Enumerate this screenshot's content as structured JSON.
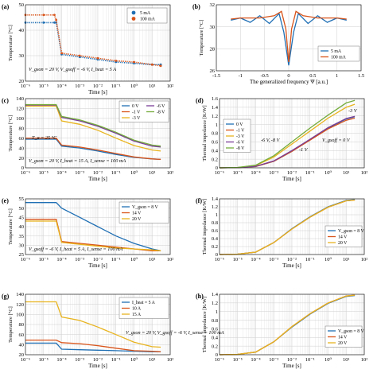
{
  "chart_data": [
    {
      "panel": "(a)",
      "type": "scatter",
      "xlabel": "Time [s]",
      "ylabel": "Temperature [°C]",
      "xscale": "log",
      "xlim": [
        1e-06,
        100
      ],
      "ylim": [
        20,
        50
      ],
      "xtick_labels": [
        "10⁻⁶",
        "10⁻⁵",
        "10⁻⁴",
        "10⁻³",
        "10⁻²",
        "10⁻¹",
        "10⁰",
        "10¹",
        "10²"
      ],
      "yticks": [
        20,
        30,
        40,
        50
      ],
      "grid": true,
      "legend": "top-right",
      "series": [
        {
          "name": "5 mA",
          "color": "#1f6fb4",
          "x": [
            1e-06,
            1e-05,
            4e-05,
            5e-05,
            0.0001,
            0.001,
            0.01,
            0.1,
            1,
            10,
            30
          ],
          "y": [
            43,
            43,
            43,
            43,
            30.5,
            29.5,
            28.5,
            27.5,
            27,
            26.5,
            26.5
          ]
        },
        {
          "name": "100 mA",
          "color": "#d9541a",
          "x": [
            1e-06,
            1e-05,
            4e-05,
            5e-05,
            0.0001,
            0.001,
            0.01,
            0.1,
            1,
            10,
            30
          ],
          "y": [
            46,
            46,
            46,
            44,
            31,
            30,
            29,
            28,
            27.5,
            26.5,
            26
          ]
        }
      ],
      "annotation": "V_gson = 20 V, V_gsoff = -6 V, I_heat = 5 A"
    },
    {
      "panel": "(b)",
      "type": "line",
      "xlabel": "The generalized frequency Ψ [a.u.]",
      "ylabel": "Temperature [°C]",
      "xlim": [
        -1.5,
        1.5
      ],
      "ylim": [
        26,
        32
      ],
      "xticks": [
        -1.5,
        -1,
        -0.5,
        0,
        0.5,
        1,
        1.5
      ],
      "yticks": [
        26,
        28,
        30,
        32
      ],
      "grid": true,
      "legend": "bottom-right",
      "series": [
        {
          "name": "5 mA",
          "color": "#1f6fb4",
          "x": [
            -1.2,
            -1.0,
            -0.8,
            -0.6,
            -0.4,
            -0.2,
            -0.1,
            0,
            0.1,
            0.2,
            0.4,
            0.6,
            0.8,
            1.0,
            1.2
          ],
          "y": [
            30.6,
            30.8,
            30.4,
            31.0,
            30.3,
            31.2,
            29.5,
            26.5,
            29.5,
            31.2,
            30.3,
            31.0,
            30.4,
            30.8,
            30.6
          ]
        },
        {
          "name": "100 mA",
          "color": "#d9541a",
          "x": [
            -1.2,
            -1.0,
            -0.6,
            -0.3,
            -0.15,
            -0.06,
            0,
            0.06,
            0.15,
            0.3,
            0.6,
            1.0,
            1.2
          ],
          "y": [
            30.7,
            30.8,
            30.8,
            31.0,
            31.4,
            29.8,
            26.8,
            29.8,
            31.4,
            31.0,
            30.8,
            30.8,
            30.7
          ]
        }
      ]
    },
    {
      "panel": "(c)",
      "type": "line",
      "xlabel": "Time [s]",
      "ylabel": "Temperature [°C]",
      "xscale": "log",
      "xlim": [
        1e-06,
        100
      ],
      "ylim": [
        0,
        140
      ],
      "xtick_labels": [
        "10⁻⁶",
        "10⁻⁵",
        "10⁻⁴",
        "10⁻³",
        "10⁻²",
        "10⁻¹",
        "10⁰",
        "10¹",
        "10²"
      ],
      "yticks": [
        0,
        20,
        40,
        60,
        80,
        100,
        120,
        140
      ],
      "grid": true,
      "legend": "top-right",
      "series": [
        {
          "name": "0 V",
          "color": "#1f6fb4",
          "x": [
            1e-06,
            4e-05,
            5e-05,
            0.0001,
            0.001,
            0.01,
            0.1,
            1,
            10,
            30
          ],
          "y": [
            58,
            58,
            58,
            44,
            40,
            34,
            27,
            21,
            18,
            17
          ]
        },
        {
          "name": "-1 V",
          "color": "#d9541a",
          "x": [
            1e-06,
            4e-05,
            5e-05,
            0.0001,
            0.001,
            0.01,
            0.1,
            1,
            10,
            30
          ],
          "y": [
            60,
            60,
            60,
            46,
            42,
            36,
            29,
            22,
            18,
            17
          ]
        },
        {
          "name": "-3 V",
          "color": "#e8b41f",
          "x": [
            1e-06,
            4e-05,
            5e-05,
            0.0001,
            0.001,
            0.01,
            0.1,
            1,
            10,
            30
          ],
          "y": [
            125,
            125,
            125,
            95,
            88,
            76,
            60,
            45,
            36,
            34
          ]
        },
        {
          "name": "-6 V",
          "color": "#7a3d96",
          "x": [
            1e-06,
            4e-05,
            5e-05,
            0.0001,
            0.001,
            0.01,
            0.1,
            1,
            10,
            30
          ],
          "y": [
            127,
            127,
            127,
            102,
            95,
            84,
            70,
            54,
            44,
            42
          ]
        },
        {
          "name": "-8 V",
          "color": "#74ac3c",
          "x": [
            1e-06,
            4e-05,
            5e-05,
            0.0001,
            0.001,
            0.01,
            0.1,
            1,
            10,
            30
          ],
          "y": [
            128,
            128,
            128,
            104,
            97,
            86,
            72,
            56,
            46,
            44
          ]
        }
      ],
      "annotations": [
        "T_a = 25 °C",
        "V_gson = 20 V, I_heat = 15 A, I_sense = 100 mA"
      ]
    },
    {
      "panel": "(d)",
      "type": "line",
      "xlabel": "Time [s]",
      "ylabel": "Thermal impedance [K/W]",
      "xscale": "log",
      "xlim": [
        1e-06,
        100
      ],
      "ylim": [
        0,
        1.6
      ],
      "xtick_labels": [
        "10⁻⁶",
        "10⁻⁵",
        "10⁻⁴",
        "10⁻³",
        "10⁻²",
        "10⁻¹",
        "10⁰",
        "10¹",
        "10²"
      ],
      "yticks": [
        0,
        0.2,
        0.4,
        0.6,
        0.8,
        1,
        1.2,
        1.4,
        1.6
      ],
      "grid": true,
      "legend": "top-left",
      "series": [
        {
          "name": "0 V",
          "color": "#1f6fb4",
          "x": [
            1e-06,
            1e-05,
            0.0001,
            0.001,
            0.01,
            0.1,
            1,
            10,
            30
          ],
          "y": [
            0,
            0.005,
            0.03,
            0.15,
            0.38,
            0.65,
            0.92,
            1.13,
            1.18
          ]
        },
        {
          "name": "-1 V",
          "color": "#d9541a",
          "x": [
            1e-06,
            1e-05,
            0.0001,
            0.001,
            0.01,
            0.1,
            1,
            10,
            30
          ],
          "y": [
            0,
            0.005,
            0.03,
            0.15,
            0.38,
            0.64,
            0.9,
            1.1,
            1.15
          ]
        },
        {
          "name": "-3 V",
          "color": "#e8b41f",
          "x": [
            1e-06,
            1e-05,
            0.0001,
            0.001,
            0.01,
            0.1,
            1,
            10,
            30
          ],
          "y": [
            0,
            0.008,
            0.05,
            0.25,
            0.55,
            0.85,
            1.15,
            1.4,
            1.47
          ]
        },
        {
          "name": "-6 V",
          "color": "#7a3d96",
          "x": [
            1e-06,
            1e-05,
            0.0001,
            0.001,
            0.01,
            0.1,
            1,
            10,
            30
          ],
          "y": [
            0,
            0.006,
            0.035,
            0.16,
            0.4,
            0.66,
            0.93,
            1.14,
            1.19
          ]
        },
        {
          "name": "-8 V",
          "color": "#74ac3c",
          "x": [
            1e-06,
            1e-05,
            0.0001,
            0.001,
            0.01,
            0.1,
            1,
            10,
            30
          ],
          "y": [
            0,
            0.009,
            0.06,
            0.28,
            0.6,
            0.92,
            1.22,
            1.5,
            1.56
          ]
        }
      ],
      "annotations": [
        "-6 V, -8 V",
        "-3 V",
        "-1 V",
        "V_gsoff = 0 V"
      ]
    },
    {
      "panel": "(e)",
      "type": "line",
      "xlabel": "Time [s]",
      "ylabel": "Temperature [°C]",
      "xscale": "log",
      "xlim": [
        1e-06,
        100
      ],
      "ylim": [
        25,
        55
      ],
      "xtick_labels": [
        "10⁻⁶",
        "10⁻⁵",
        "10⁻⁴",
        "10⁻³",
        "10⁻²",
        "10⁻¹",
        "10⁰",
        "10¹",
        "10²"
      ],
      "yticks": [
        25,
        30,
        35,
        40,
        45,
        50,
        55
      ],
      "grid": true,
      "legend": "top-right",
      "series": [
        {
          "name": "V_gson = 8 V",
          "color": "#1f6fb4",
          "x": [
            1e-06,
            4e-05,
            5e-05,
            0.0001,
            0.001,
            0.01,
            0.1,
            1,
            10,
            30
          ],
          "y": [
            53,
            53,
            53,
            50,
            45,
            40,
            35,
            31,
            28,
            27
          ]
        },
        {
          "name": "14 V",
          "color": "#d9541a",
          "x": [
            1e-06,
            4e-05,
            5e-05,
            0.0001,
            0.001,
            0.01,
            0.1,
            1,
            10,
            30
          ],
          "y": [
            44,
            44,
            44,
            32,
            31,
            30,
            29,
            28,
            27,
            27
          ]
        },
        {
          "name": "20 V",
          "color": "#e8b41f",
          "x": [
            1e-06,
            4e-05,
            5e-05,
            0.0001,
            0.001,
            0.01,
            0.1,
            1,
            10,
            30
          ],
          "y": [
            43,
            43,
            43,
            31.5,
            30.5,
            29.5,
            28.5,
            28,
            27.5,
            27
          ]
        }
      ],
      "annotation": "V_gsoff = -6 V, I_heat = 5 A, I_sense = 100 mA"
    },
    {
      "panel": "(f)",
      "type": "line",
      "xlabel": "Time [s]",
      "ylabel": "Thermal impedance [K/W]",
      "xscale": "log",
      "xlim": [
        1e-06,
        100
      ],
      "ylim": [
        0,
        1.4
      ],
      "xtick_labels": [
        "10⁻⁶",
        "10⁻⁵",
        "10⁻⁴",
        "10⁻³",
        "10⁻²",
        "10⁻¹",
        "10⁰",
        "10¹",
        "10²"
      ],
      "yticks": [
        0,
        0.2,
        0.4,
        0.6,
        0.8,
        1,
        1.2,
        1.4
      ],
      "grid": true,
      "legend": "bottom-right",
      "series": [
        {
          "name": "V_gson = 8 V",
          "color": "#1f6fb4",
          "x": [
            1e-06,
            1e-05,
            0.0001,
            0.001,
            0.01,
            0.1,
            1,
            10,
            30
          ],
          "y": [
            0,
            0.01,
            0.06,
            0.3,
            0.65,
            0.95,
            1.2,
            1.36,
            1.38
          ]
        },
        {
          "name": "14 V",
          "color": "#d9541a",
          "x": [
            1e-06,
            1e-05,
            0.0001,
            0.001,
            0.01,
            0.1,
            1,
            10,
            30
          ],
          "y": [
            0,
            0.01,
            0.06,
            0.3,
            0.64,
            0.94,
            1.19,
            1.35,
            1.37
          ]
        },
        {
          "name": "20 V",
          "color": "#e8b41f",
          "x": [
            1e-06,
            1e-05,
            0.0001,
            0.001,
            0.01,
            0.1,
            1,
            10,
            30
          ],
          "y": [
            0,
            0.01,
            0.06,
            0.3,
            0.64,
            0.94,
            1.19,
            1.35,
            1.37
          ]
        }
      ]
    },
    {
      "panel": "(g)",
      "type": "line",
      "xlabel": "Time [s]",
      "ylabel": "Temperature [°C]",
      "xscale": "log",
      "xlim": [
        1e-06,
        100
      ],
      "ylim": [
        20,
        140
      ],
      "xtick_labels": [
        "10⁻⁶",
        "10⁻⁵",
        "10⁻⁴",
        "10⁻³",
        "10⁻²",
        "10⁻¹",
        "10⁰",
        "10¹",
        "10²"
      ],
      "yticks": [
        20,
        40,
        60,
        80,
        100,
        120,
        140
      ],
      "grid": true,
      "legend": "top-right",
      "series": [
        {
          "name": "I_heat = 5 A",
          "color": "#1f6fb4",
          "x": [
            1e-06,
            4e-05,
            5e-05,
            0.0001,
            0.001,
            0.01,
            0.1,
            1,
            10,
            30
          ],
          "y": [
            43,
            43,
            43,
            31,
            30,
            29,
            28,
            27,
            26,
            26
          ]
        },
        {
          "name": "10 A",
          "color": "#d9541a",
          "x": [
            1e-06,
            4e-05,
            5e-05,
            0.0001,
            0.001,
            0.01,
            0.1,
            1,
            10,
            30
          ],
          "y": [
            49,
            49,
            49,
            44,
            42,
            38,
            33,
            28,
            27,
            26
          ]
        },
        {
          "name": "15 A",
          "color": "#e8b41f",
          "x": [
            1e-06,
            4e-05,
            5e-05,
            0.0001,
            0.001,
            0.01,
            0.1,
            1,
            10,
            30
          ],
          "y": [
            125,
            125,
            125,
            95,
            88,
            75,
            60,
            45,
            36,
            35
          ]
        }
      ],
      "annotation": "V_gson = 20 V, V_gsoff = -6 V, I_sense = 100 mA"
    },
    {
      "panel": "(h)",
      "type": "line",
      "xlabel": "Time [s]",
      "ylabel": "Thermal impedance [K/W]",
      "xscale": "log",
      "xlim": [
        1e-06,
        100
      ],
      "ylim": [
        0,
        1.4
      ],
      "xtick_labels": [
        "10⁻⁶",
        "10⁻⁵",
        "10⁻⁴",
        "10⁻³",
        "10⁻²",
        "10⁻¹",
        "10⁰",
        "10¹",
        "10²"
      ],
      "yticks": [
        0,
        0.2,
        0.4,
        0.6,
        0.8,
        1,
        1.2,
        1.4
      ],
      "grid": true,
      "legend": "bottom-right",
      "series": [
        {
          "name": "V_gson = 8 V",
          "color": "#1f6fb4",
          "x": [
            1e-06,
            1e-05,
            0.0001,
            0.001,
            0.01,
            0.1,
            1,
            10,
            30
          ],
          "y": [
            0,
            0.01,
            0.06,
            0.3,
            0.64,
            0.94,
            1.19,
            1.35,
            1.37
          ]
        },
        {
          "name": "14 V",
          "color": "#d9541a",
          "x": [
            1e-06,
            1e-05,
            0.0001,
            0.001,
            0.01,
            0.1,
            1,
            10,
            30
          ],
          "y": [
            0,
            0.01,
            0.06,
            0.3,
            0.65,
            0.95,
            1.2,
            1.36,
            1.38
          ]
        },
        {
          "name": "20 V",
          "color": "#e8b41f",
          "x": [
            1e-06,
            1e-05,
            0.0001,
            0.001,
            0.01,
            0.1,
            1,
            10,
            30
          ],
          "y": [
            0,
            0.01,
            0.06,
            0.3,
            0.65,
            0.95,
            1.2,
            1.36,
            1.38
          ]
        }
      ]
    }
  ]
}
